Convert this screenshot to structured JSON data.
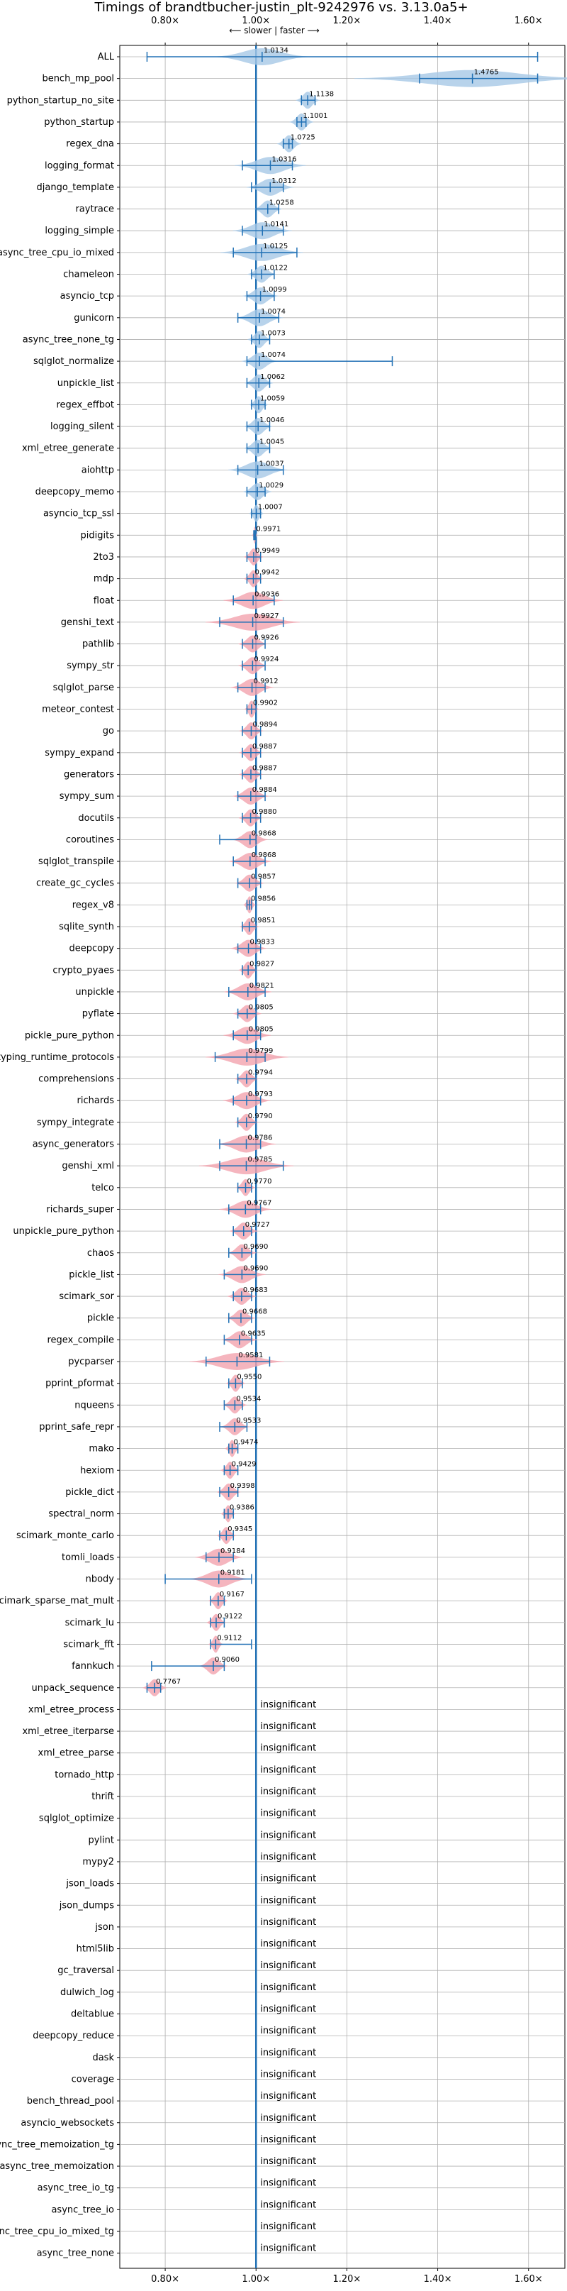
{
  "chart_data": {
    "type": "violin",
    "title": "Timings of brandtbucher-justin_plt-9242976 vs. 3.13.0a5+",
    "direction_label": "⟵ slower | faster ⟶",
    "xlim": [
      0.7,
      1.68
    ],
    "xticks": [
      "0.80×",
      "1.00×",
      "1.20×",
      "1.40×",
      "1.60×"
    ],
    "xtick_values": [
      0.8,
      1.0,
      1.2,
      1.4,
      1.6
    ],
    "grid": true,
    "colors": {
      "better": "#a6c8e6",
      "worse": "#f2a3ae",
      "line": "#2271b5",
      "grid": "#b0b0b0"
    },
    "insignificant_label": "insignificant",
    "benchmarks": [
      {
        "name": "ALL",
        "mean": 1.0134,
        "label": "1.0134",
        "lo": 0.76,
        "hi": 1.62,
        "spread": 0.04,
        "insig": false
      },
      {
        "name": "bench_mp_pool",
        "mean": 1.4765,
        "label": "1.4765",
        "lo": 1.36,
        "hi": 1.62,
        "spread": 0.1,
        "insig": false
      },
      {
        "name": "python_startup_no_site",
        "mean": 1.1138,
        "label": "1.1138",
        "lo": 1.1,
        "hi": 1.13,
        "spread": 0.01,
        "insig": false
      },
      {
        "name": "python_startup",
        "mean": 1.1001,
        "label": "1.1001",
        "lo": 1.09,
        "hi": 1.11,
        "spread": 0.01,
        "insig": false
      },
      {
        "name": "regex_dna",
        "mean": 1.0725,
        "label": "1.0725",
        "lo": 1.06,
        "hi": 1.08,
        "spread": 0.01,
        "insig": false
      },
      {
        "name": "logging_format",
        "mean": 1.0316,
        "label": "1.0316",
        "lo": 0.97,
        "hi": 1.08,
        "spread": 0.03,
        "insig": false
      },
      {
        "name": "django_template",
        "mean": 1.0312,
        "label": "1.0312",
        "lo": 0.99,
        "hi": 1.06,
        "spread": 0.02,
        "insig": false
      },
      {
        "name": "raytrace",
        "mean": 1.0258,
        "label": "1.0258",
        "lo": 1.0,
        "hi": 1.05,
        "spread": 0.012,
        "insig": false
      },
      {
        "name": "logging_simple",
        "mean": 1.0141,
        "label": "1.0141",
        "lo": 0.97,
        "hi": 1.06,
        "spread": 0.025,
        "insig": false
      },
      {
        "name": "async_tree_cpu_io_mixed",
        "mean": 1.0125,
        "label": "1.0125",
        "lo": 0.95,
        "hi": 1.09,
        "spread": 0.035,
        "insig": false
      },
      {
        "name": "chameleon",
        "mean": 1.0122,
        "label": "1.0122",
        "lo": 0.99,
        "hi": 1.04,
        "spread": 0.012,
        "insig": false
      },
      {
        "name": "asyncio_tcp",
        "mean": 1.0099,
        "label": "1.0099",
        "lo": 0.98,
        "hi": 1.04,
        "spread": 0.015,
        "insig": false
      },
      {
        "name": "gunicorn",
        "mean": 1.0074,
        "label": "1.0074",
        "lo": 0.96,
        "hi": 1.05,
        "spread": 0.02,
        "insig": false
      },
      {
        "name": "async_tree_none_tg",
        "mean": 1.0073,
        "label": "1.0073",
        "lo": 0.99,
        "hi": 1.03,
        "spread": 0.01,
        "insig": false
      },
      {
        "name": "sqlglot_normalize",
        "mean": 1.0074,
        "label": "1.0074",
        "lo": 0.98,
        "hi": 1.3,
        "spread": 0.015,
        "insig": false
      },
      {
        "name": "unpickle_list",
        "mean": 1.0062,
        "label": "1.0062",
        "lo": 0.98,
        "hi": 1.03,
        "spread": 0.012,
        "insig": false
      },
      {
        "name": "regex_effbot",
        "mean": 1.0059,
        "label": "1.0059",
        "lo": 0.99,
        "hi": 1.02,
        "spread": 0.008,
        "insig": false
      },
      {
        "name": "logging_silent",
        "mean": 1.0046,
        "label": "1.0046",
        "lo": 0.98,
        "hi": 1.03,
        "spread": 0.012,
        "insig": false
      },
      {
        "name": "xml_etree_generate",
        "mean": 1.0045,
        "label": "1.0045",
        "lo": 0.98,
        "hi": 1.03,
        "spread": 0.012,
        "insig": false
      },
      {
        "name": "aiohttp",
        "mean": 1.0037,
        "label": "1.0037",
        "lo": 0.96,
        "hi": 1.06,
        "spread": 0.025,
        "insig": false
      },
      {
        "name": "deepcopy_memo",
        "mean": 1.0029,
        "label": "1.0029",
        "lo": 0.98,
        "hi": 1.02,
        "spread": 0.012,
        "insig": false
      },
      {
        "name": "asyncio_tcp_ssl",
        "mean": 1.0007,
        "label": "1.0007",
        "lo": 0.99,
        "hi": 1.01,
        "spread": 0.006,
        "insig": false
      },
      {
        "name": "pidigits",
        "mean": 0.9971,
        "label": "0.9971",
        "lo": 0.995,
        "hi": 0.999,
        "spread": 0.002,
        "insig": false
      },
      {
        "name": "2to3",
        "mean": 0.9949,
        "label": "0.9949",
        "lo": 0.98,
        "hi": 1.01,
        "spread": 0.008,
        "insig": false
      },
      {
        "name": "mdp",
        "mean": 0.9942,
        "label": "0.9942",
        "lo": 0.98,
        "hi": 1.01,
        "spread": 0.008,
        "insig": false
      },
      {
        "name": "float",
        "mean": 0.9936,
        "label": "0.9936",
        "lo": 0.95,
        "hi": 1.04,
        "spread": 0.025,
        "insig": false
      },
      {
        "name": "genshi_text",
        "mean": 0.9927,
        "label": "0.9927",
        "lo": 0.92,
        "hi": 1.06,
        "spread": 0.04,
        "insig": false
      },
      {
        "name": "pathlib",
        "mean": 0.9926,
        "label": "0.9926",
        "lo": 0.97,
        "hi": 1.02,
        "spread": 0.012,
        "insig": false
      },
      {
        "name": "sympy_str",
        "mean": 0.9924,
        "label": "0.9924",
        "lo": 0.97,
        "hi": 1.02,
        "spread": 0.012,
        "insig": false
      },
      {
        "name": "sqlglot_parse",
        "mean": 0.9912,
        "label": "0.9912",
        "lo": 0.96,
        "hi": 1.02,
        "spread": 0.018,
        "insig": false
      },
      {
        "name": "meteor_contest",
        "mean": 0.9902,
        "label": "0.9902",
        "lo": 0.98,
        "hi": 1.0,
        "spread": 0.006,
        "insig": false
      },
      {
        "name": "go",
        "mean": 0.9894,
        "label": "0.9894",
        "lo": 0.97,
        "hi": 1.01,
        "spread": 0.01,
        "insig": false
      },
      {
        "name": "sympy_expand",
        "mean": 0.9887,
        "label": "0.9887",
        "lo": 0.97,
        "hi": 1.01,
        "spread": 0.01,
        "insig": false
      },
      {
        "name": "generators",
        "mean": 0.9887,
        "label": "0.9887",
        "lo": 0.97,
        "hi": 1.01,
        "spread": 0.01,
        "insig": false
      },
      {
        "name": "sympy_sum",
        "mean": 0.9884,
        "label": "0.9884",
        "lo": 0.96,
        "hi": 1.02,
        "spread": 0.015,
        "insig": false
      },
      {
        "name": "docutils",
        "mean": 0.988,
        "label": "0.9880",
        "lo": 0.97,
        "hi": 1.01,
        "spread": 0.01,
        "insig": false
      },
      {
        "name": "coroutines",
        "mean": 0.9868,
        "label": "0.9868",
        "lo": 0.92,
        "hi": 1.0,
        "spread": 0.015,
        "insig": false
      },
      {
        "name": "sqlglot_transpile",
        "mean": 0.9868,
        "label": "0.9868",
        "lo": 0.95,
        "hi": 1.02,
        "spread": 0.018,
        "insig": false
      },
      {
        "name": "create_gc_cycles",
        "mean": 0.9857,
        "label": "0.9857",
        "lo": 0.96,
        "hi": 1.01,
        "spread": 0.012,
        "insig": false
      },
      {
        "name": "regex_v8",
        "mean": 0.9856,
        "label": "0.9856",
        "lo": 0.98,
        "hi": 0.99,
        "spread": 0.005,
        "insig": false
      },
      {
        "name": "sqlite_synth",
        "mean": 0.9851,
        "label": "0.9851",
        "lo": 0.97,
        "hi": 1.0,
        "spread": 0.008,
        "insig": false
      },
      {
        "name": "deepcopy",
        "mean": 0.9833,
        "label": "0.9833",
        "lo": 0.96,
        "hi": 1.01,
        "spread": 0.015,
        "insig": false
      },
      {
        "name": "crypto_pyaes",
        "mean": 0.9827,
        "label": "0.9827",
        "lo": 0.97,
        "hi": 1.0,
        "spread": 0.008,
        "insig": false
      },
      {
        "name": "unpickle",
        "mean": 0.9821,
        "label": "0.9821",
        "lo": 0.94,
        "hi": 1.02,
        "spread": 0.02,
        "insig": false
      },
      {
        "name": "pyflate",
        "mean": 0.9805,
        "label": "0.9805",
        "lo": 0.96,
        "hi": 1.0,
        "spread": 0.012,
        "insig": false
      },
      {
        "name": "pickle_pure_python",
        "mean": 0.9805,
        "label": "0.9805",
        "lo": 0.95,
        "hi": 1.01,
        "spread": 0.02,
        "insig": false
      },
      {
        "name": "typing_runtime_protocols",
        "mean": 0.9799,
        "label": "0.9799",
        "lo": 0.91,
        "hi": 1.02,
        "spread": 0.035,
        "insig": false
      },
      {
        "name": "comprehensions",
        "mean": 0.9794,
        "label": "0.9794",
        "lo": 0.96,
        "hi": 1.0,
        "spread": 0.01,
        "insig": false
      },
      {
        "name": "richards",
        "mean": 0.9793,
        "label": "0.9793",
        "lo": 0.95,
        "hi": 1.01,
        "spread": 0.02,
        "insig": false
      },
      {
        "name": "sympy_integrate",
        "mean": 0.979,
        "label": "0.9790",
        "lo": 0.96,
        "hi": 1.0,
        "spread": 0.01,
        "insig": false
      },
      {
        "name": "async_generators",
        "mean": 0.9786,
        "label": "0.9786",
        "lo": 0.92,
        "hi": 1.01,
        "spread": 0.025,
        "insig": false
      },
      {
        "name": "genshi_xml",
        "mean": 0.9785,
        "label": "0.9785",
        "lo": 0.92,
        "hi": 1.06,
        "spread": 0.04,
        "insig": false
      },
      {
        "name": "telco",
        "mean": 0.977,
        "label": "0.9770",
        "lo": 0.96,
        "hi": 0.99,
        "spread": 0.008,
        "insig": false
      },
      {
        "name": "richards_super",
        "mean": 0.9767,
        "label": "0.9767",
        "lo": 0.94,
        "hi": 1.01,
        "spread": 0.022,
        "insig": false
      },
      {
        "name": "unpickle_pure_python",
        "mean": 0.9727,
        "label": "0.9727",
        "lo": 0.95,
        "hi": 0.99,
        "spread": 0.012,
        "insig": false
      },
      {
        "name": "chaos",
        "mean": 0.969,
        "label": "0.9690",
        "lo": 0.94,
        "hi": 0.99,
        "spread": 0.012,
        "insig": false
      },
      {
        "name": "pickle_list",
        "mean": 0.969,
        "label": "0.9690",
        "lo": 0.93,
        "hi": 1.0,
        "spread": 0.02,
        "insig": false
      },
      {
        "name": "scimark_sor",
        "mean": 0.9683,
        "label": "0.9683",
        "lo": 0.95,
        "hi": 0.99,
        "spread": 0.012,
        "insig": false
      },
      {
        "name": "pickle",
        "mean": 0.9668,
        "label": "0.9668",
        "lo": 0.94,
        "hi": 0.99,
        "spread": 0.012,
        "insig": false
      },
      {
        "name": "regex_compile",
        "mean": 0.9635,
        "label": "0.9635",
        "lo": 0.93,
        "hi": 0.99,
        "spread": 0.015,
        "insig": false
      },
      {
        "name": "pycparser",
        "mean": 0.9581,
        "label": "0.9581",
        "lo": 0.89,
        "hi": 1.03,
        "spread": 0.04,
        "insig": false
      },
      {
        "name": "pprint_pformat",
        "mean": 0.955,
        "label": "0.9550",
        "lo": 0.94,
        "hi": 0.97,
        "spread": 0.008,
        "insig": false
      },
      {
        "name": "nqueens",
        "mean": 0.9534,
        "label": "0.9534",
        "lo": 0.93,
        "hi": 0.97,
        "spread": 0.01,
        "insig": false
      },
      {
        "name": "pprint_safe_repr",
        "mean": 0.9533,
        "label": "0.9533",
        "lo": 0.92,
        "hi": 0.98,
        "spread": 0.012,
        "insig": false
      },
      {
        "name": "mako",
        "mean": 0.9474,
        "label": "0.9474",
        "lo": 0.94,
        "hi": 0.96,
        "spread": 0.006,
        "insig": false
      },
      {
        "name": "hexiom",
        "mean": 0.9429,
        "label": "0.9429",
        "lo": 0.93,
        "hi": 0.96,
        "spread": 0.008,
        "insig": false
      },
      {
        "name": "pickle_dict",
        "mean": 0.9398,
        "label": "0.9398",
        "lo": 0.92,
        "hi": 0.96,
        "spread": 0.01,
        "insig": false
      },
      {
        "name": "spectral_norm",
        "mean": 0.9386,
        "label": "0.9386",
        "lo": 0.93,
        "hi": 0.95,
        "spread": 0.006,
        "insig": false
      },
      {
        "name": "scimark_monte_carlo",
        "mean": 0.9345,
        "label": "0.9345",
        "lo": 0.92,
        "hi": 0.95,
        "spread": 0.008,
        "insig": false
      },
      {
        "name": "tomli_loads",
        "mean": 0.9184,
        "label": "0.9184",
        "lo": 0.89,
        "hi": 0.95,
        "spread": 0.02,
        "insig": false
      },
      {
        "name": "nbody",
        "mean": 0.9181,
        "label": "0.9181",
        "lo": 0.8,
        "hi": 0.99,
        "spread": 0.025,
        "insig": false
      },
      {
        "name": "scimark_sparse_mat_mult",
        "mean": 0.9167,
        "label": "0.9167",
        "lo": 0.9,
        "hi": 0.93,
        "spread": 0.008,
        "insig": false
      },
      {
        "name": "scimark_lu",
        "mean": 0.9122,
        "label": "0.9122",
        "lo": 0.9,
        "hi": 0.93,
        "spread": 0.008,
        "insig": false
      },
      {
        "name": "scimark_fft",
        "mean": 0.9112,
        "label": "0.9112",
        "lo": 0.9,
        "hi": 0.99,
        "spread": 0.006,
        "insig": false
      },
      {
        "name": "fannkuch",
        "mean": 0.906,
        "label": "0.9060",
        "lo": 0.77,
        "hi": 0.93,
        "spread": 0.012,
        "insig": false
      },
      {
        "name": "unpack_sequence",
        "mean": 0.7767,
        "label": "0.7767",
        "lo": 0.76,
        "hi": 0.79,
        "spread": 0.01,
        "insig": false
      },
      {
        "name": "xml_etree_process",
        "insig": true
      },
      {
        "name": "xml_etree_iterparse",
        "insig": true
      },
      {
        "name": "xml_etree_parse",
        "insig": true
      },
      {
        "name": "tornado_http",
        "insig": true
      },
      {
        "name": "thrift",
        "insig": true
      },
      {
        "name": "sqlglot_optimize",
        "insig": true
      },
      {
        "name": "pylint",
        "insig": true
      },
      {
        "name": "mypy2",
        "insig": true
      },
      {
        "name": "json_loads",
        "insig": true
      },
      {
        "name": "json_dumps",
        "insig": true
      },
      {
        "name": "json",
        "insig": true
      },
      {
        "name": "html5lib",
        "insig": true
      },
      {
        "name": "gc_traversal",
        "insig": true
      },
      {
        "name": "dulwich_log",
        "insig": true
      },
      {
        "name": "deltablue",
        "insig": true
      },
      {
        "name": "deepcopy_reduce",
        "insig": true
      },
      {
        "name": "dask",
        "insig": true
      },
      {
        "name": "coverage",
        "insig": true
      },
      {
        "name": "bench_thread_pool",
        "insig": true
      },
      {
        "name": "asyncio_websockets",
        "insig": true
      },
      {
        "name": "async_tree_memoization_tg",
        "insig": true
      },
      {
        "name": "async_tree_memoization",
        "insig": true
      },
      {
        "name": "async_tree_io_tg",
        "insig": true
      },
      {
        "name": "async_tree_io",
        "insig": true
      },
      {
        "name": "async_tree_cpu_io_mixed_tg",
        "insig": true
      },
      {
        "name": "async_tree_none",
        "insig": true
      }
    ]
  }
}
